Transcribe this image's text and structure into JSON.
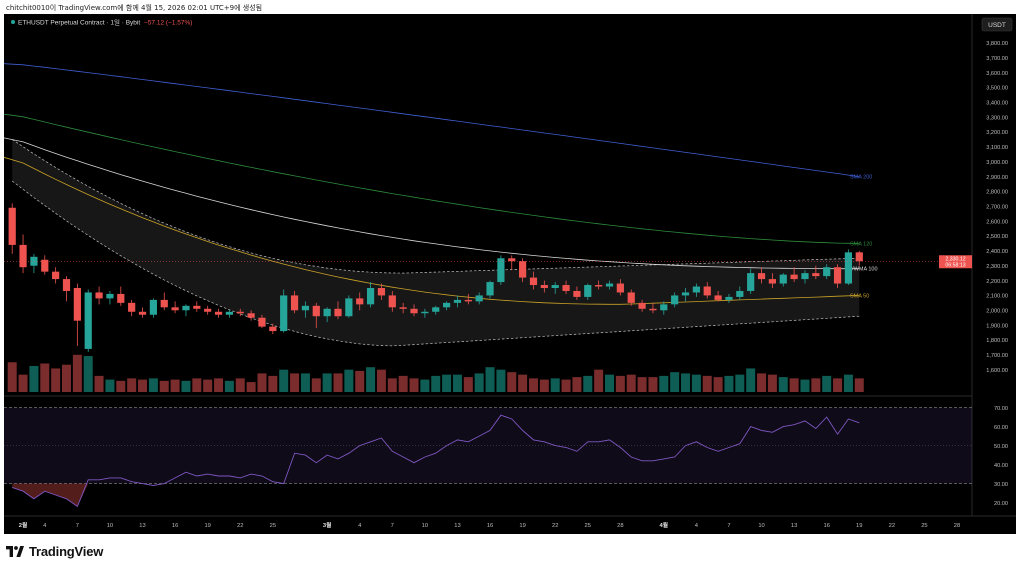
{
  "header": {
    "caption": "chitchit0010이 TradingView.com에 함께 4월 15, 2026 02:01 UTC+9에 생성됨"
  },
  "footer": {
    "brand": "TradingView",
    "logo_icon": "tradingview-logo-icon"
  },
  "colors": {
    "background": "#000000",
    "up": "#26a69a",
    "down": "#ef5350",
    "up_volume": "#0f5e55",
    "down_volume": "#7a2d2c",
    "sma200": "#3f5fd4",
    "sma120": "#2c8a3a",
    "sma50": "#c9a227",
    "vwma100": "#d8d8d8",
    "band": "#bfbfbf",
    "rsi": "#7e57c2",
    "price_label": "#ef5350"
  },
  "chart_data": [
    {
      "type": "candlestick",
      "title": "ETHUSDT Perpetual Contract · 1일 · Bybit",
      "change_text": "−57.12 (−1.57%)",
      "currency": "USDT",
      "ylim": [
        1450,
        3900
      ],
      "y_ticks": [
        "3,800.00",
        "3,700.00",
        "3,600.00",
        "3,500.00",
        "3,400.00",
        "3,300.00",
        "3,200.00",
        "3,100.00",
        "3,000.00",
        "2,900.00",
        "2,800.00",
        "2,700.00",
        "2,600.00",
        "2,500.00",
        "2,400.00",
        "2,300.00",
        "2,200.00",
        "2,100.00",
        "2,000.00",
        "1,900.00",
        "1,800.00",
        "1,700.00",
        "1,600.00"
      ],
      "x_ticks": [
        "2월",
        "4",
        "7",
        "10",
        "13",
        "16",
        "19",
        "22",
        "25",
        "3월",
        "4",
        "7",
        "10",
        "13",
        "16",
        "19",
        "22",
        "25",
        "28",
        "4월",
        "4",
        "7",
        "10",
        "13",
        "16",
        "19",
        "22",
        "25",
        "28"
      ],
      "x_tick_days": [
        1,
        3,
        6,
        9,
        12,
        15,
        18,
        21,
        24,
        29,
        32,
        35,
        38,
        41,
        44,
        47,
        50,
        53,
        56,
        60,
        63,
        66,
        69,
        72,
        75,
        78,
        81,
        84,
        87
      ],
      "last_price_label": "2,330.12",
      "countdown_label": "06:58:13",
      "last_price": 2330,
      "ma_labels": [
        {
          "name": "SMA 200",
          "value": 2900,
          "color": "#3f5fd4"
        },
        {
          "name": "SMA 120",
          "value": 2450,
          "color": "#2c8a3a"
        },
        {
          "name": "VWMA 100",
          "value": 2280,
          "color": "#d8d8d8"
        },
        {
          "name": "SMA 50",
          "value": 2100,
          "color": "#c9a227"
        }
      ],
      "candles": [
        {
          "day": 0,
          "o": 2690,
          "h": 2720,
          "l": 2380,
          "c": 2440
        },
        {
          "day": 1,
          "o": 2440,
          "h": 2510,
          "l": 2250,
          "c": 2290
        },
        {
          "day": 2,
          "o": 2300,
          "h": 2380,
          "l": 2250,
          "c": 2360
        },
        {
          "day": 3,
          "o": 2340,
          "h": 2370,
          "l": 2240,
          "c": 2260
        },
        {
          "day": 4,
          "o": 2260,
          "h": 2290,
          "l": 2180,
          "c": 2210
        },
        {
          "day": 5,
          "o": 2210,
          "h": 2230,
          "l": 2060,
          "c": 2130
        },
        {
          "day": 6,
          "o": 2150,
          "h": 2180,
          "l": 1760,
          "c": 1930
        },
        {
          "day": 7,
          "o": 1740,
          "h": 2140,
          "l": 1720,
          "c": 2120
        },
        {
          "day": 8,
          "o": 2120,
          "h": 2160,
          "l": 2040,
          "c": 2080
        },
        {
          "day": 9,
          "o": 2080,
          "h": 2130,
          "l": 2040,
          "c": 2110
        },
        {
          "day": 10,
          "o": 2110,
          "h": 2160,
          "l": 2030,
          "c": 2050
        },
        {
          "day": 11,
          "o": 2050,
          "h": 2070,
          "l": 1960,
          "c": 1990
        },
        {
          "day": 12,
          "o": 1990,
          "h": 2020,
          "l": 1950,
          "c": 1970
        },
        {
          "day": 13,
          "o": 1970,
          "h": 2080,
          "l": 1950,
          "c": 2070
        },
        {
          "day": 14,
          "o": 2070,
          "h": 2120,
          "l": 2000,
          "c": 2020
        },
        {
          "day": 15,
          "o": 2020,
          "h": 2060,
          "l": 1980,
          "c": 2000
        },
        {
          "day": 16,
          "o": 2000,
          "h": 2040,
          "l": 1960,
          "c": 2030
        },
        {
          "day": 17,
          "o": 2030,
          "h": 2060,
          "l": 1990,
          "c": 2010
        },
        {
          "day": 18,
          "o": 2010,
          "h": 2030,
          "l": 1970,
          "c": 1990
        },
        {
          "day": 19,
          "o": 1990,
          "h": 2010,
          "l": 1950,
          "c": 1970
        },
        {
          "day": 20,
          "o": 1970,
          "h": 2000,
          "l": 1950,
          "c": 1990
        },
        {
          "day": 21,
          "o": 1990,
          "h": 2010,
          "l": 1960,
          "c": 1980
        },
        {
          "day": 22,
          "o": 1980,
          "h": 2000,
          "l": 1930,
          "c": 1950
        },
        {
          "day": 23,
          "o": 1950,
          "h": 1970,
          "l": 1880,
          "c": 1890
        },
        {
          "day": 24,
          "o": 1890,
          "h": 1910,
          "l": 1840,
          "c": 1860
        },
        {
          "day": 25,
          "o": 1860,
          "h": 2140,
          "l": 1850,
          "c": 2100
        },
        {
          "day": 26,
          "o": 2100,
          "h": 2130,
          "l": 1980,
          "c": 2000
        },
        {
          "day": 27,
          "o": 2000,
          "h": 2060,
          "l": 1950,
          "c": 2030
        },
        {
          "day": 28,
          "o": 2030,
          "h": 2050,
          "l": 1880,
          "c": 1960
        },
        {
          "day": 29,
          "o": 1960,
          "h": 2020,
          "l": 1920,
          "c": 2010
        },
        {
          "day": 30,
          "o": 2010,
          "h": 2060,
          "l": 1940,
          "c": 1960
        },
        {
          "day": 31,
          "o": 1960,
          "h": 2100,
          "l": 1950,
          "c": 2080
        },
        {
          "day": 32,
          "o": 2080,
          "h": 2120,
          "l": 2000,
          "c": 2040
        },
        {
          "day": 33,
          "o": 2040,
          "h": 2190,
          "l": 2020,
          "c": 2150
        },
        {
          "day": 34,
          "o": 2150,
          "h": 2180,
          "l": 2070,
          "c": 2100
        },
        {
          "day": 35,
          "o": 2100,
          "h": 2130,
          "l": 1990,
          "c": 2020
        },
        {
          "day": 36,
          "o": 2020,
          "h": 2050,
          "l": 1980,
          "c": 2010
        },
        {
          "day": 37,
          "o": 2010,
          "h": 2040,
          "l": 1960,
          "c": 1980
        },
        {
          "day": 38,
          "o": 1980,
          "h": 2010,
          "l": 1950,
          "c": 1990
        },
        {
          "day": 39,
          "o": 1990,
          "h": 2030,
          "l": 1970,
          "c": 2020
        },
        {
          "day": 40,
          "o": 2020,
          "h": 2060,
          "l": 2000,
          "c": 2050
        },
        {
          "day": 41,
          "o": 2050,
          "h": 2100,
          "l": 2020,
          "c": 2070
        },
        {
          "day": 42,
          "o": 2070,
          "h": 2110,
          "l": 2040,
          "c": 2060
        },
        {
          "day": 43,
          "o": 2060,
          "h": 2120,
          "l": 2040,
          "c": 2100
        },
        {
          "day": 44,
          "o": 2100,
          "h": 2200,
          "l": 2080,
          "c": 2190
        },
        {
          "day": 45,
          "o": 2190,
          "h": 2370,
          "l": 2170,
          "c": 2350
        },
        {
          "day": 46,
          "o": 2350,
          "h": 2370,
          "l": 2270,
          "c": 2330
        },
        {
          "day": 47,
          "o": 2330,
          "h": 2350,
          "l": 2190,
          "c": 2220
        },
        {
          "day": 48,
          "o": 2220,
          "h": 2260,
          "l": 2140,
          "c": 2170
        },
        {
          "day": 49,
          "o": 2170,
          "h": 2200,
          "l": 2120,
          "c": 2150
        },
        {
          "day": 50,
          "o": 2150,
          "h": 2190,
          "l": 2110,
          "c": 2170
        },
        {
          "day": 51,
          "o": 2170,
          "h": 2200,
          "l": 2110,
          "c": 2130
        },
        {
          "day": 52,
          "o": 2130,
          "h": 2160,
          "l": 2070,
          "c": 2090
        },
        {
          "day": 53,
          "o": 2090,
          "h": 2180,
          "l": 2070,
          "c": 2170
        },
        {
          "day": 54,
          "o": 2170,
          "h": 2200,
          "l": 2140,
          "c": 2160
        },
        {
          "day": 55,
          "o": 2160,
          "h": 2200,
          "l": 2140,
          "c": 2180
        },
        {
          "day": 56,
          "o": 2180,
          "h": 2210,
          "l": 2100,
          "c": 2120
        },
        {
          "day": 57,
          "o": 2120,
          "h": 2140,
          "l": 2030,
          "c": 2050
        },
        {
          "day": 58,
          "o": 2050,
          "h": 2070,
          "l": 1990,
          "c": 2010
        },
        {
          "day": 59,
          "o": 2010,
          "h": 2050,
          "l": 1980,
          "c": 2000
        },
        {
          "day": 60,
          "o": 2000,
          "h": 2060,
          "l": 1970,
          "c": 2040
        },
        {
          "day": 61,
          "o": 2040,
          "h": 2120,
          "l": 2020,
          "c": 2100
        },
        {
          "day": 62,
          "o": 2100,
          "h": 2150,
          "l": 2060,
          "c": 2120
        },
        {
          "day": 63,
          "o": 2120,
          "h": 2180,
          "l": 2090,
          "c": 2160
        },
        {
          "day": 64,
          "o": 2160,
          "h": 2190,
          "l": 2080,
          "c": 2100
        },
        {
          "day": 65,
          "o": 2100,
          "h": 2130,
          "l": 2060,
          "c": 2070
        },
        {
          "day": 66,
          "o": 2070,
          "h": 2110,
          "l": 2050,
          "c": 2090
        },
        {
          "day": 67,
          "o": 2090,
          "h": 2160,
          "l": 2070,
          "c": 2130
        },
        {
          "day": 68,
          "o": 2130,
          "h": 2280,
          "l": 2110,
          "c": 2250
        },
        {
          "day": 69,
          "o": 2250,
          "h": 2290,
          "l": 2180,
          "c": 2210
        },
        {
          "day": 70,
          "o": 2210,
          "h": 2250,
          "l": 2150,
          "c": 2180
        },
        {
          "day": 71,
          "o": 2180,
          "h": 2250,
          "l": 2160,
          "c": 2240
        },
        {
          "day": 72,
          "o": 2240,
          "h": 2290,
          "l": 2190,
          "c": 2210
        },
        {
          "day": 73,
          "o": 2210,
          "h": 2270,
          "l": 2180,
          "c": 2250
        },
        {
          "day": 74,
          "o": 2250,
          "h": 2300,
          "l": 2210,
          "c": 2230
        },
        {
          "day": 75,
          "o": 2230,
          "h": 2310,
          "l": 2210,
          "c": 2290
        },
        {
          "day": 76,
          "o": 2290,
          "h": 2310,
          "l": 2150,
          "c": 2180
        },
        {
          "day": 77,
          "o": 2180,
          "h": 2410,
          "l": 2170,
          "c": 2390
        },
        {
          "day": 78,
          "o": 2390,
          "h": 2400,
          "l": 2300,
          "c": 2330
        }
      ],
      "volume": [
        48,
        28,
        42,
        46,
        38,
        44,
        60,
        58,
        26,
        20,
        18,
        22,
        20,
        22,
        18,
        20,
        18,
        22,
        20,
        22,
        18,
        22,
        16,
        30,
        26,
        36,
        30,
        30,
        22,
        30,
        30,
        36,
        34,
        40,
        36,
        22,
        26,
        22,
        20,
        26,
        28,
        28,
        24,
        30,
        40,
        36,
        32,
        28,
        22,
        20,
        22,
        20,
        24,
        26,
        36,
        28,
        26,
        28,
        24,
        24,
        26,
        32,
        30,
        28,
        26,
        24,
        26,
        28,
        38,
        30,
        28,
        24,
        22,
        20,
        22,
        26,
        22,
        28,
        22
      ]
    },
    {
      "type": "line",
      "title": "RSI",
      "ylim": [
        14,
        74
      ],
      "y_ticks": [
        "70.00",
        "60.00",
        "50.00",
        "40.00",
        "30.00",
        "20.00"
      ],
      "bands": [
        30,
        70
      ],
      "values": [
        28,
        26,
        22,
        26,
        24,
        22,
        18,
        32,
        32,
        33,
        33,
        31,
        30,
        29,
        30,
        33,
        36,
        34,
        35,
        34,
        34,
        33,
        35,
        34,
        31,
        30,
        46,
        45,
        41,
        45,
        43,
        46,
        50,
        52,
        54,
        47,
        44,
        41,
        44,
        46,
        50,
        53,
        52,
        55,
        58,
        66,
        64,
        58,
        53,
        52,
        50,
        49,
        47,
        52,
        52,
        53,
        49,
        44,
        42,
        42,
        43,
        44,
        50,
        52,
        49,
        47,
        49,
        51,
        60,
        58,
        57,
        60,
        61,
        63,
        59,
        65,
        56,
        64,
        62
      ]
    }
  ]
}
